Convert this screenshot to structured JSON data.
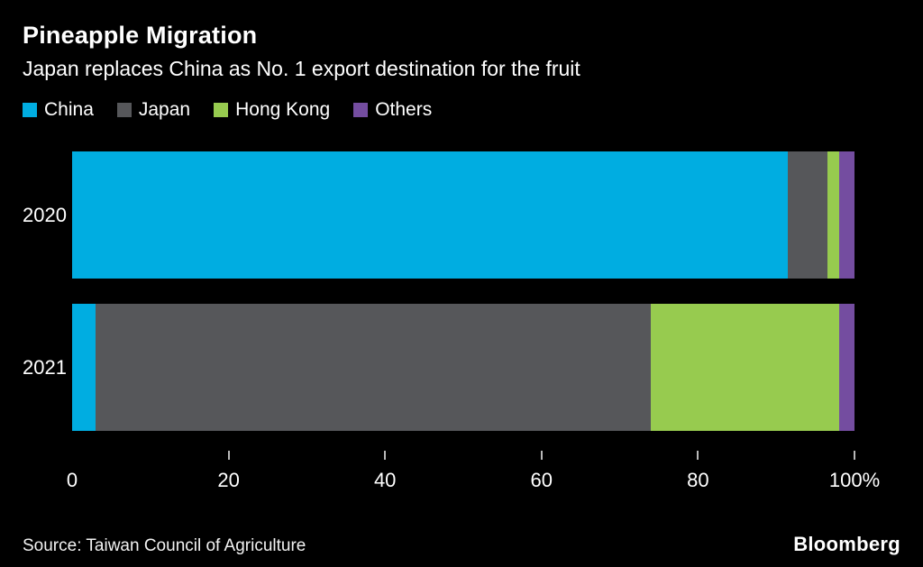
{
  "header": {
    "title": "Pineapple Migration",
    "subtitle": "Japan replaces China as No. 1 export destination for the fruit"
  },
  "chart_data": {
    "type": "bar",
    "orientation": "horizontal",
    "stacked": true,
    "title": "Pineapple Migration",
    "subtitle": "Japan replaces China as No. 1 export destination for the fruit",
    "categories": [
      "2020",
      "2021"
    ],
    "series": [
      {
        "name": "China",
        "color": "#00ade1",
        "values": [
          91.5,
          3
        ]
      },
      {
        "name": "Japan",
        "color": "#56575a",
        "values": [
          5,
          71
        ]
      },
      {
        "name": "Hong Kong",
        "color": "#97cb4f",
        "values": [
          1.5,
          24
        ]
      },
      {
        "name": "Others",
        "color": "#744da0",
        "values": [
          2,
          2
        ]
      }
    ],
    "xlabel": "",
    "ylabel": "",
    "xlim": [
      0,
      100
    ],
    "x_ticks": [
      0,
      20,
      40,
      60,
      80,
      100
    ],
    "x_tick_labels": [
      "0",
      "20",
      "40",
      "60",
      "80",
      "100%"
    ],
    "legend_position": "top",
    "grid": false
  },
  "footer": {
    "source": "Source: Taiwan Council of Agriculture",
    "brand": "Bloomberg"
  }
}
